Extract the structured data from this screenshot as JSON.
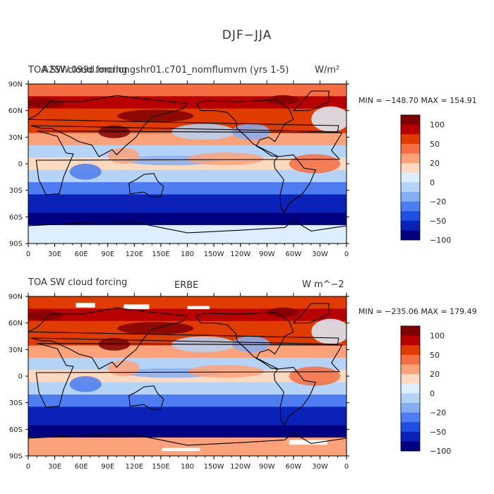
{
  "figure": {
    "title": "DJF−JJA"
  },
  "panels": [
    {
      "id": "model",
      "left_title": "TOA SW cloud forcing",
      "center_title": "A2SW.099d.morlongshr01.c701_nomflumvm (yrs 1-5)",
      "right_title": "W/m²",
      "minmax": "MIN = −148.70  MAX = 154.91"
    },
    {
      "id": "obs",
      "left_title": "TOA SW cloud forcing",
      "center_title": "ERBE",
      "right_title": "W m^−2",
      "minmax": "MIN = −235.06  MAX = 179.49"
    }
  ],
  "axes": {
    "lat_labels": [
      "90N",
      "60N",
      "30N",
      "0",
      "30S",
      "60S",
      "90S"
    ],
    "lon_labels": [
      "0",
      "30E",
      "60E",
      "90E",
      "120E",
      "150E",
      "180",
      "150W",
      "120W",
      "90W",
      "60W",
      "30W",
      "0"
    ]
  },
  "colorbar": {
    "colors": [
      "#7f0000",
      "#b80000",
      "#e03c00",
      "#f46d43",
      "#fca27a",
      "#fdd9c0",
      "#dceeff",
      "#b4d3f7",
      "#86aef2",
      "#4d7df0",
      "#1f4fe0",
      "#0a22b8",
      "#000080"
    ],
    "tick_labels": [
      "100",
      "50",
      "20",
      "0",
      "−20",
      "−50",
      "−100"
    ]
  },
  "legend_colors": {
    "land_outline": "#000000",
    "missing_data": "#ffffff"
  }
}
